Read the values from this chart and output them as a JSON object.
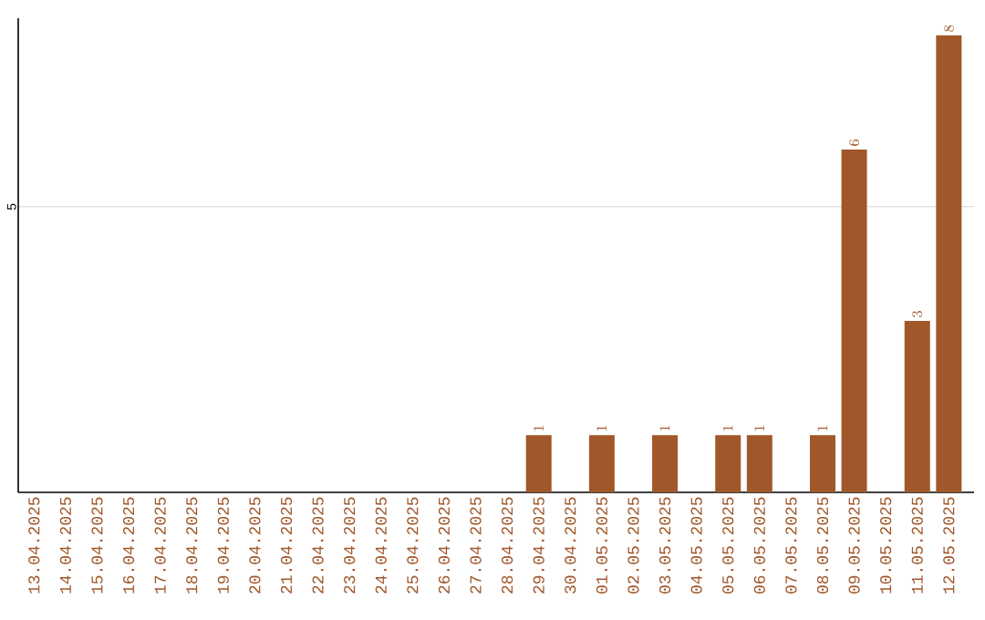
{
  "chart_data": {
    "type": "bar",
    "categories": [
      "13.04.2025",
      "14.04.2025",
      "15.04.2025",
      "16.04.2025",
      "17.04.2025",
      "18.04.2025",
      "19.04.2025",
      "20.04.2025",
      "21.04.2025",
      "22.04.2025",
      "23.04.2025",
      "24.04.2025",
      "25.04.2025",
      "26.04.2025",
      "27.04.2025",
      "28.04.2025",
      "29.04.2025",
      "30.04.2025",
      "01.05.2025",
      "02.05.2025",
      "03.05.2025",
      "04.05.2025",
      "05.05.2025",
      "06.05.2025",
      "07.05.2025",
      "08.05.2025",
      "09.05.2025",
      "10.05.2025",
      "11.05.2025",
      "12.05.2025"
    ],
    "values": [
      null,
      null,
      null,
      null,
      null,
      null,
      null,
      null,
      null,
      null,
      null,
      null,
      null,
      null,
      null,
      null,
      1,
      null,
      1,
      null,
      1,
      null,
      1,
      1,
      null,
      1,
      6,
      null,
      3,
      8
    ],
    "data_labels": true,
    "color": "#a0572a",
    "ylim": [
      0,
      8.3
    ],
    "yticks": [
      5
    ],
    "grid": "y"
  }
}
